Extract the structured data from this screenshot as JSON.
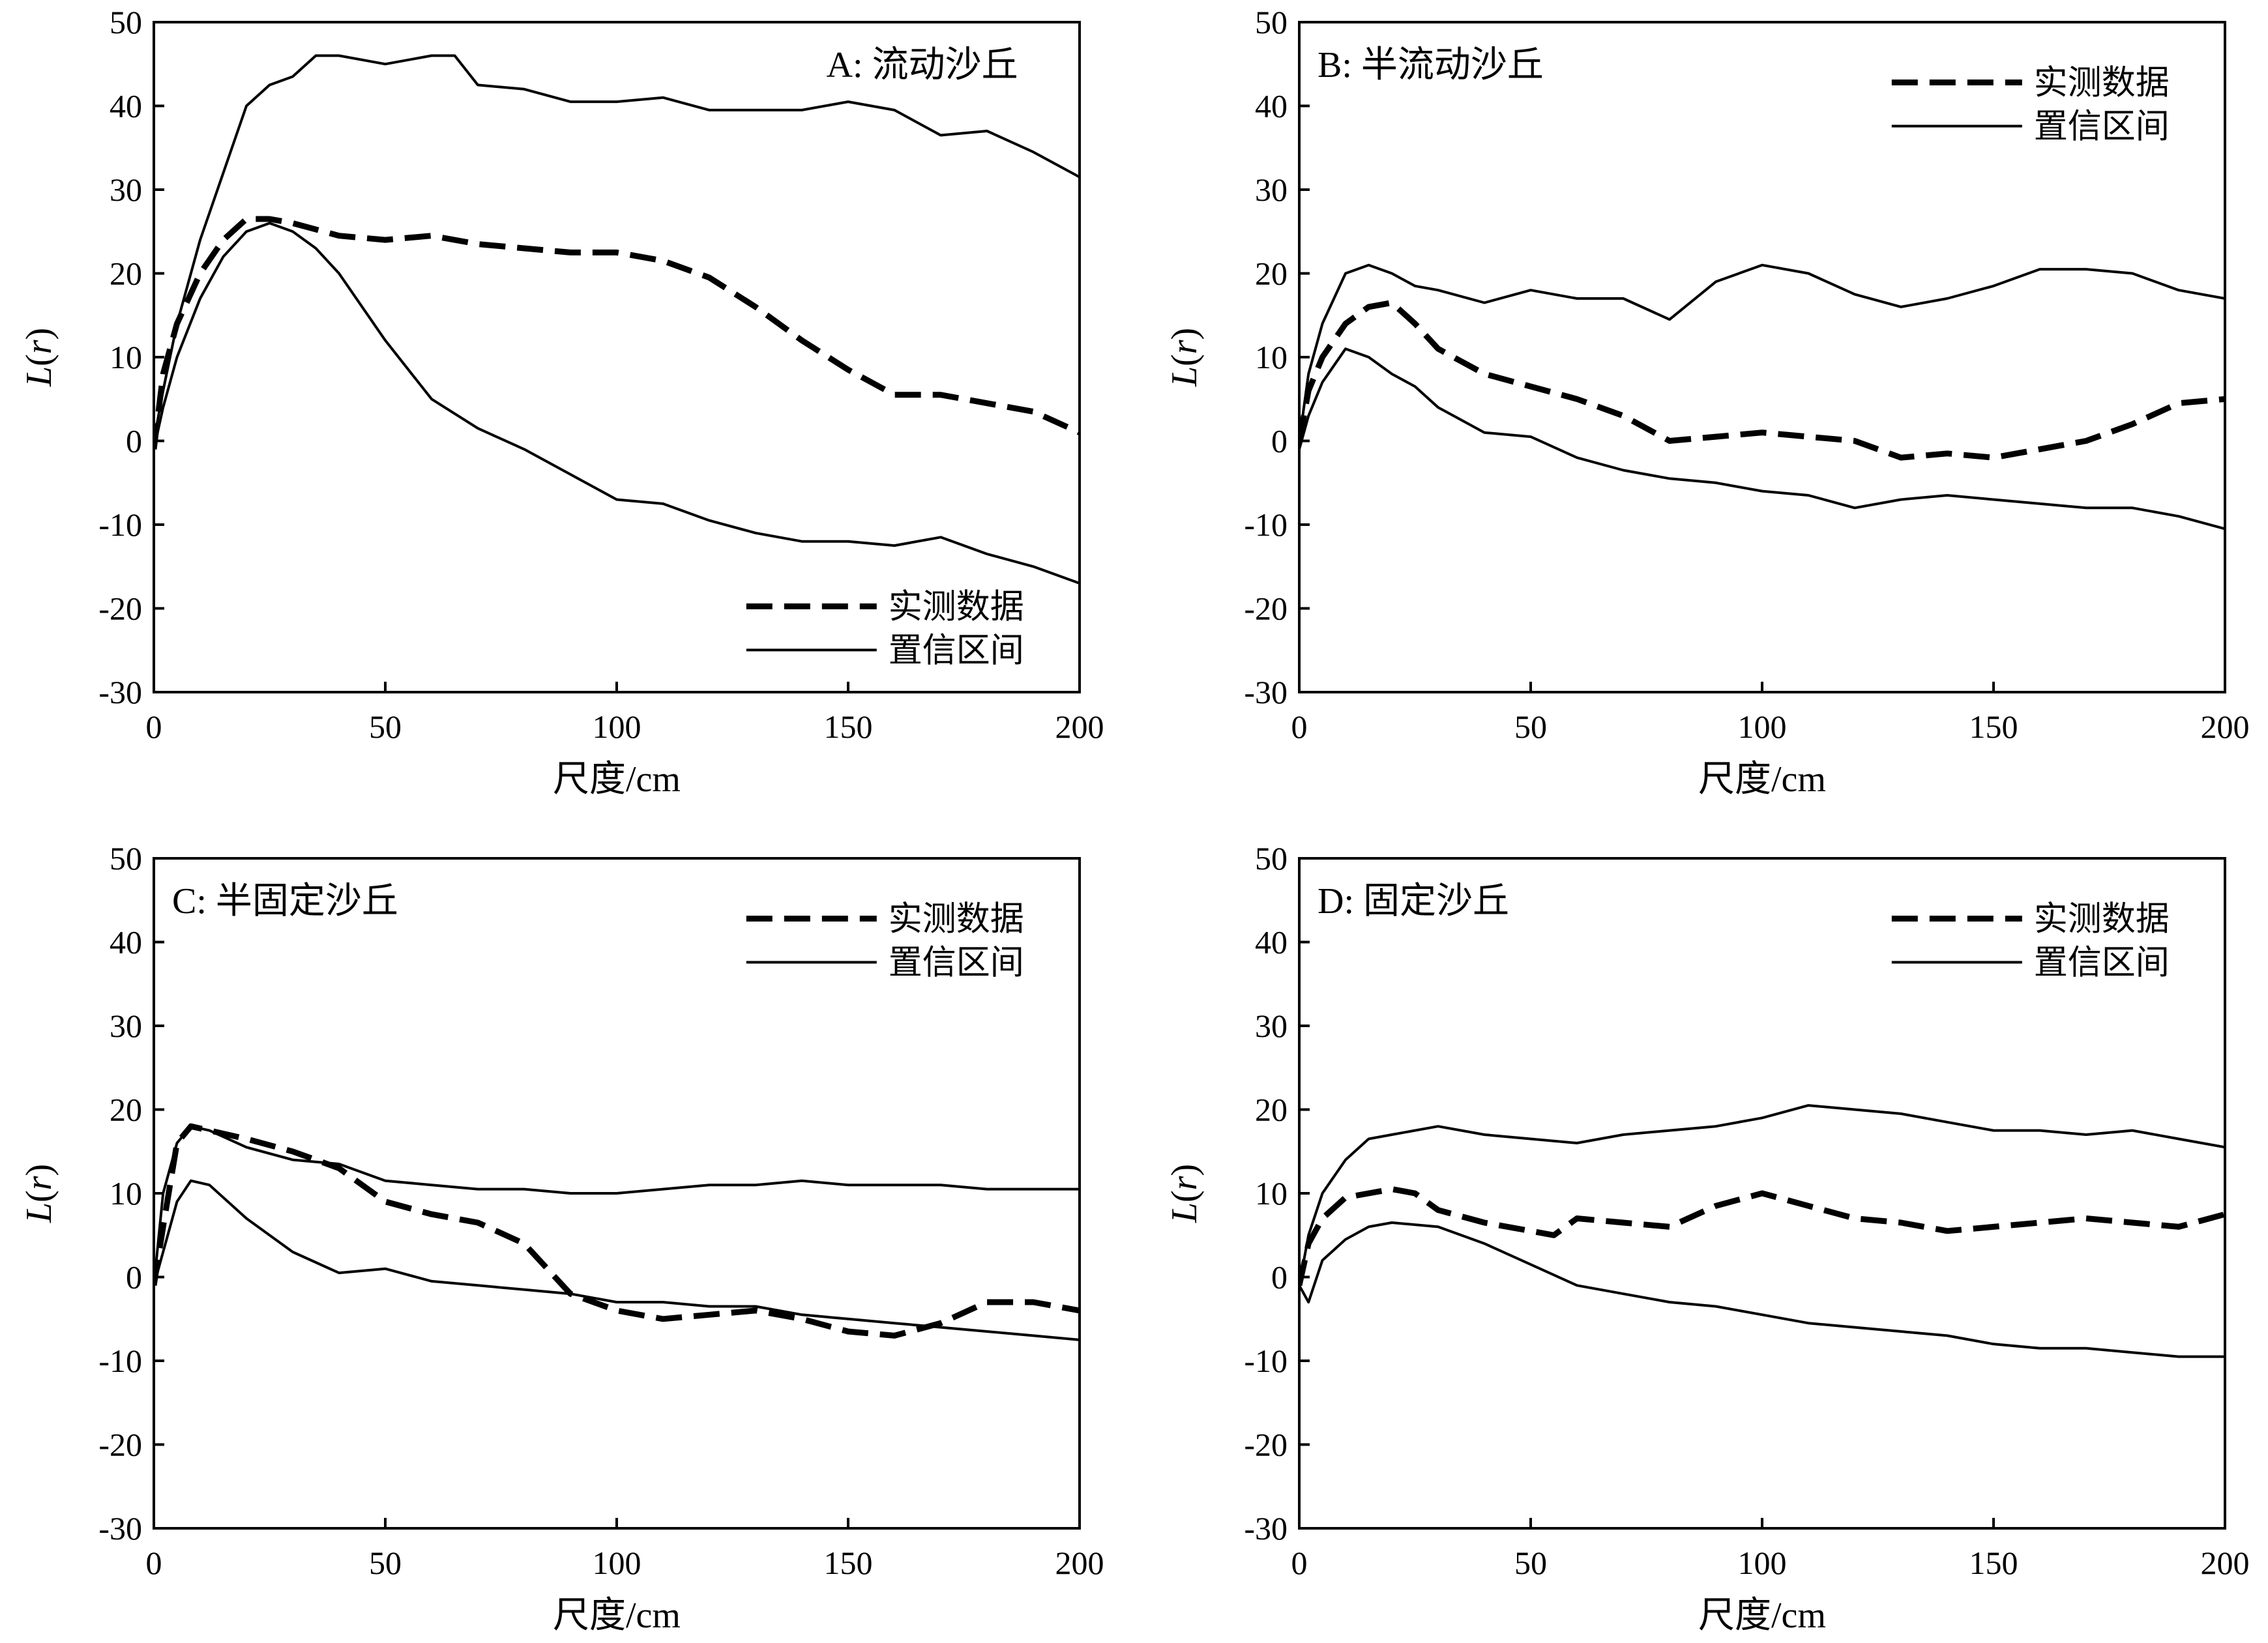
{
  "chart_data": [
    {
      "type": "line",
      "panel": "A",
      "title": "A: 流动沙丘",
      "xlabel": "尺度/cm",
      "ylabel": "L(r)",
      "xlim": [
        0,
        200
      ],
      "ylim": [
        -30,
        50
      ],
      "xticks": [
        "0",
        "50",
        "100",
        "150",
        "200"
      ],
      "yticks": [
        "50",
        "40",
        "30",
        "20",
        "10",
        "0",
        "-10",
        "-20",
        "-30"
      ],
      "legend_position": "bottom-right",
      "legend": [
        "实测数据",
        "置信区间"
      ],
      "series": [
        {
          "name": "实测数据",
          "style": "dashed",
          "x": [
            0,
            2,
            5,
            10,
            15,
            20,
            25,
            30,
            40,
            50,
            60,
            70,
            80,
            90,
            100,
            110,
            120,
            130,
            140,
            150,
            160,
            170,
            180,
            190,
            200
          ],
          "y": [
            -1,
            8,
            14,
            20,
            24,
            26.5,
            26.5,
            26,
            24.5,
            24,
            24.5,
            23.5,
            23,
            22.5,
            22.5,
            21.5,
            19.5,
            16,
            12,
            8.5,
            5.5,
            5.5,
            4.5,
            3.5,
            1
          ]
        },
        {
          "name": "置信区间",
          "style": "solid",
          "x": [
            0,
            2,
            5,
            10,
            15,
            20,
            25,
            30,
            35,
            40,
            50,
            60,
            65,
            70,
            80,
            90,
            100,
            110,
            120,
            130,
            140,
            150,
            160,
            170,
            180,
            190,
            200
          ],
          "y": [
            0,
            6,
            14,
            24,
            32,
            40,
            42.5,
            43.5,
            46,
            46,
            45,
            46,
            46,
            42.5,
            42,
            40.5,
            40.5,
            41,
            39.5,
            39.5,
            39.5,
            40.5,
            39.5,
            36.5,
            37,
            34.5,
            31.5
          ]
        },
        {
          "name": "置信区间",
          "style": "solid",
          "x": [
            0,
            2,
            5,
            10,
            15,
            20,
            25,
            30,
            35,
            40,
            50,
            60,
            70,
            80,
            90,
            100,
            110,
            120,
            130,
            140,
            150,
            160,
            170,
            180,
            190,
            200
          ],
          "y": [
            -1,
            4,
            10,
            17,
            22,
            25,
            26,
            25,
            23,
            20,
            12,
            5,
            1.5,
            -1,
            -4,
            -7,
            -7.5,
            -9.5,
            -11,
            -12,
            -12,
            -12.5,
            -11.5,
            -13.5,
            -15,
            -17
          ]
        }
      ]
    },
    {
      "type": "line",
      "panel": "B",
      "title": "B: 半流动沙丘",
      "xlabel": "尺度/cm",
      "ylabel": "L(r)",
      "xlim": [
        0,
        200
      ],
      "ylim": [
        -30,
        50
      ],
      "xticks": [
        "0",
        "50",
        "100",
        "150",
        "200"
      ],
      "yticks": [
        "50",
        "40",
        "30",
        "20",
        "10",
        "0",
        "-10",
        "-20",
        "-30"
      ],
      "legend_position": "top-right",
      "legend": [
        "实测数据",
        "置信区间"
      ],
      "series": [
        {
          "name": "实测数据",
          "style": "dashed",
          "x": [
            0,
            2,
            5,
            10,
            15,
            20,
            25,
            30,
            40,
            50,
            60,
            70,
            80,
            90,
            100,
            110,
            120,
            130,
            140,
            150,
            160,
            170,
            180,
            190,
            200
          ],
          "y": [
            0,
            6,
            10,
            14,
            16,
            16.5,
            14,
            11,
            8,
            6.5,
            5,
            3,
            0,
            0.5,
            1,
            0.5,
            0,
            -2,
            -1.5,
            -2,
            -1,
            0,
            2,
            4.5,
            5
          ]
        },
        {
          "name": "置信区间",
          "style": "solid",
          "x": [
            0,
            2,
            5,
            10,
            15,
            20,
            25,
            30,
            40,
            50,
            60,
            70,
            80,
            90,
            100,
            110,
            120,
            130,
            140,
            150,
            160,
            170,
            180,
            190,
            200
          ],
          "y": [
            0,
            8,
            14,
            20,
            21,
            20,
            18.5,
            18,
            16.5,
            18,
            17,
            17,
            14.5,
            19,
            21,
            20,
            17.5,
            16,
            17,
            18.5,
            20.5,
            20.5,
            20,
            18,
            17
          ]
        },
        {
          "name": "置信区间",
          "style": "solid",
          "x": [
            0,
            2,
            5,
            10,
            15,
            20,
            25,
            30,
            40,
            50,
            60,
            70,
            80,
            90,
            100,
            110,
            120,
            130,
            140,
            150,
            160,
            170,
            180,
            190,
            200
          ],
          "y": [
            -1,
            3,
            7,
            11,
            10,
            8,
            6.5,
            4,
            1,
            0.5,
            -2,
            -3.5,
            -4.5,
            -5,
            -6,
            -6.5,
            -8,
            -7,
            -6.5,
            -7,
            -7.5,
            -8,
            -8,
            -9,
            -10.5
          ]
        }
      ]
    },
    {
      "type": "line",
      "panel": "C",
      "title": "C: 半固定沙丘",
      "xlabel": "尺度/cm",
      "ylabel": "L(r)",
      "xlim": [
        0,
        200
      ],
      "ylim": [
        -30,
        50
      ],
      "xticks": [
        "0",
        "50",
        "100",
        "150",
        "200"
      ],
      "yticks": [
        "50",
        "40",
        "30",
        "20",
        "10",
        "0",
        "-10",
        "-20",
        "-30"
      ],
      "legend_position": "top-right",
      "legend": [
        "实测数据",
        "置信区间"
      ],
      "series": [
        {
          "name": "实测数据",
          "style": "dashed",
          "x": [
            0,
            2,
            5,
            8,
            12,
            20,
            30,
            40,
            50,
            60,
            70,
            80,
            90,
            100,
            110,
            120,
            130,
            140,
            150,
            160,
            170,
            180,
            190,
            200
          ],
          "y": [
            -1,
            6,
            16,
            18,
            17.5,
            16.5,
            15,
            13,
            9,
            7.5,
            6.5,
            4,
            -2,
            -4,
            -5,
            -4.5,
            -4,
            -5,
            -6.5,
            -7,
            -5.5,
            -3,
            -3,
            -4
          ]
        },
        {
          "name": "置信区间",
          "style": "solid",
          "x": [
            0,
            2,
            5,
            8,
            12,
            20,
            30,
            40,
            50,
            60,
            70,
            80,
            90,
            100,
            110,
            120,
            130,
            140,
            150,
            160,
            170,
            180,
            190,
            200
          ],
          "y": [
            -1,
            10,
            16,
            18,
            17.5,
            15.5,
            14,
            13.5,
            11.5,
            11,
            10.5,
            10.5,
            10,
            10,
            10.5,
            11,
            11,
            11.5,
            11,
            11,
            11,
            10.5,
            10.5,
            10.5
          ]
        },
        {
          "name": "置信区间",
          "style": "solid",
          "x": [
            0,
            2,
            5,
            8,
            12,
            20,
            30,
            40,
            50,
            60,
            70,
            80,
            90,
            100,
            110,
            120,
            130,
            140,
            150,
            160,
            170,
            180,
            190,
            200
          ],
          "y": [
            -1,
            3,
            9,
            11.5,
            11,
            7,
            3,
            0.5,
            1,
            -0.5,
            -1,
            -1.5,
            -2,
            -3,
            -3,
            -3.5,
            -3.5,
            -4.5,
            -5,
            -5.5,
            -6,
            -6.5,
            -7,
            -7.5
          ]
        }
      ]
    },
    {
      "type": "line",
      "panel": "D",
      "title": "D: 固定沙丘",
      "xlabel": "尺度/cm",
      "ylabel": "L(r)",
      "xlim": [
        0,
        200
      ],
      "ylim": [
        -30,
        50
      ],
      "xticks": [
        "0",
        "50",
        "100",
        "150",
        "200"
      ],
      "yticks": [
        "50",
        "40",
        "30",
        "20",
        "10",
        "0",
        "-10",
        "-20",
        "-30"
      ],
      "legend_position": "top-right",
      "legend": [
        "实测数据",
        "置信区间"
      ],
      "series": [
        {
          "name": "实测数据",
          "style": "dashed",
          "x": [
            0,
            2,
            5,
            10,
            15,
            20,
            25,
            30,
            40,
            50,
            55,
            60,
            70,
            80,
            90,
            100,
            110,
            120,
            130,
            140,
            150,
            160,
            170,
            180,
            190,
            200
          ],
          "y": [
            -1,
            4,
            7,
            9.5,
            10,
            10.5,
            10,
            8,
            6.5,
            5.5,
            5,
            7,
            6.5,
            6,
            8.5,
            10,
            8.5,
            7,
            6.5,
            5.5,
            6,
            6.5,
            7,
            6.5,
            6,
            7.5
          ]
        },
        {
          "name": "置信区间",
          "style": "solid",
          "x": [
            0,
            2,
            5,
            10,
            15,
            20,
            30,
            40,
            50,
            60,
            70,
            80,
            90,
            100,
            110,
            120,
            130,
            140,
            150,
            160,
            170,
            180,
            190,
            200
          ],
          "y": [
            -1,
            5,
            10,
            14,
            16.5,
            17,
            18,
            17,
            16.5,
            16,
            17,
            17.5,
            18,
            19,
            20.5,
            20,
            19.5,
            18.5,
            17.5,
            17.5,
            17,
            17.5,
            16.5,
            15.5
          ]
        },
        {
          "name": "置信区间",
          "style": "solid",
          "x": [
            0,
            2,
            5,
            10,
            15,
            20,
            30,
            40,
            50,
            60,
            70,
            80,
            90,
            100,
            110,
            120,
            130,
            140,
            150,
            160,
            170,
            180,
            190,
            200
          ],
          "y": [
            -1,
            -3,
            2,
            4.5,
            6,
            6.5,
            6,
            4,
            1.5,
            -1,
            -2,
            -3,
            -3.5,
            -4.5,
            -5.5,
            -6,
            -6.5,
            -7,
            -8,
            -8.5,
            -8.5,
            -9,
            -9.5,
            -9.5
          ]
        }
      ]
    }
  ]
}
